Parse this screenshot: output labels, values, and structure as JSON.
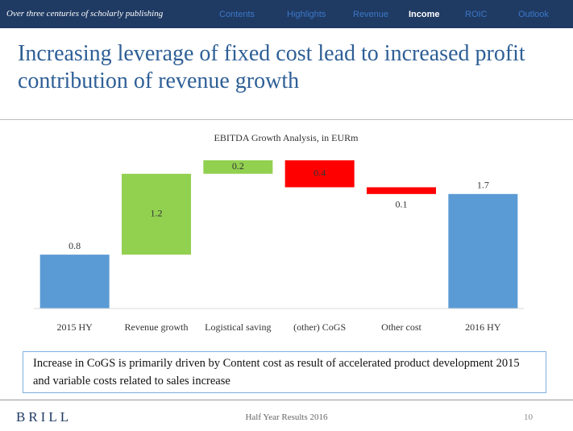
{
  "header": {
    "tagline": "Over three centuries of scholarly publishing",
    "nav": [
      "Contents",
      "Highlights",
      "Revenue",
      "Income",
      "ROIC",
      "Outlook"
    ],
    "active": 3
  },
  "title": "Increasing leverage of fixed cost lead to increased profit contribution of revenue growth",
  "chart_data": {
    "type": "waterfall",
    "title": "EBITDA Growth Analysis, in EURm",
    "categories": [
      "2015 HY",
      "Revenue growth",
      "Logistical saving",
      "(other) CoGS",
      "Other cost",
      "2016 HY"
    ],
    "values": [
      0.8,
      1.2,
      0.2,
      -0.4,
      -0.1,
      1.7
    ],
    "value_labels": [
      "0.8",
      "1.2",
      "0.2",
      "0.4",
      "0.1",
      "1.7"
    ],
    "colors": [
      "#5b9bd5",
      "#92d050",
      "#92d050",
      "#ff0000",
      "#ff0000",
      "#5b9bd5"
    ]
  },
  "note": "Increase in CoGS is primarily driven by Content cost as result of accelerated product development 2015 and variable costs related to sales increase",
  "footer": {
    "brand": "BRILL",
    "center": "Half Year Results 2016",
    "page": "10"
  }
}
